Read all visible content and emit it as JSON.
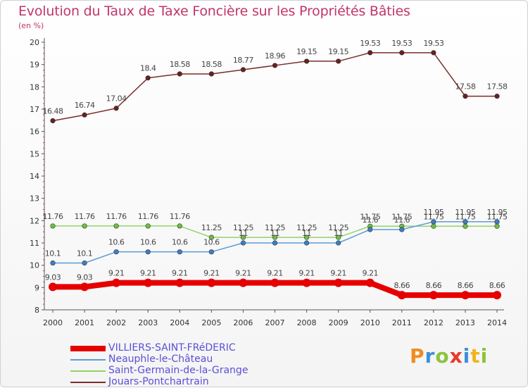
{
  "title": "Evolution du Taux de Taxe Foncière sur les Propriétés Bâties",
  "unit_label": "(en %)",
  "logo": {
    "text": "Proxiti",
    "letters": [
      {
        "ch": "P",
        "color": "#f08c1e"
      },
      {
        "ch": "r",
        "color": "#3d8fd8"
      },
      {
        "ch": "o",
        "color": "#8cc43c"
      },
      {
        "ch": "x",
        "color": "#e8392a"
      },
      {
        "ch": "i",
        "color": "#3d8fd8"
      },
      {
        "ch": "t",
        "color": "#f0b41e"
      },
      {
        "ch": "i",
        "color": "#8cc43c"
      }
    ]
  },
  "chart_data": {
    "type": "line",
    "title": "Evolution du Taux de Taxe Foncière sur les Propriétés Bâties",
    "ylabel": "(en %)",
    "xlabel": "",
    "ylim": [
      8,
      20
    ],
    "yticks": [
      8,
      9,
      10,
      11,
      12,
      13,
      14,
      15,
      16,
      17,
      18,
      19,
      20
    ],
    "x": [
      "2000",
      "2001",
      "2002",
      "2003",
      "2004",
      "2005",
      "2006",
      "2007",
      "2008",
      "2009",
      "2010",
      "2011",
      "2012",
      "2013",
      "2014"
    ],
    "grid": false,
    "legend_position": "bottom-left",
    "series": [
      {
        "name": "VILLIERS-SAINT-FRéDERIC",
        "color": "#e60000",
        "marker_color": "#e60000",
        "width": 8,
        "values": [
          9.03,
          9.03,
          9.21,
          9.21,
          9.21,
          9.21,
          9.21,
          9.21,
          9.21,
          9.21,
          9.21,
          8.66,
          8.66,
          8.66,
          8.66
        ],
        "labels": [
          "9.03",
          "9.03",
          "9.21",
          "9.21",
          "9.21",
          "9.21",
          "9.21",
          "9.21",
          "9.21",
          "9.21",
          "9.21",
          "8.66",
          "8.66",
          "8.66",
          "8.66"
        ]
      },
      {
        "name": "Neauphle-le-Château",
        "color": "#5b9bd5",
        "marker_color": "#3a7ec8",
        "width": 1.5,
        "values": [
          10.1,
          10.1,
          10.6,
          10.6,
          10.6,
          10.6,
          11,
          11,
          11,
          11,
          11.6,
          11.6,
          11.95,
          11.95,
          11.95
        ],
        "labels": [
          "10.1",
          "10.1",
          "10.6",
          "10.6",
          "10.6",
          "10.6",
          "11",
          "11",
          "11",
          "11",
          "11.6",
          "11.6",
          "11.95",
          "11.95",
          "11.95"
        ]
      },
      {
        "name": "Saint-Germain-de-la-Grange",
        "color": "#8fd46a",
        "marker_color": "#6cc040",
        "width": 1.5,
        "values": [
          11.76,
          11.76,
          11.76,
          11.76,
          11.76,
          11.25,
          11.25,
          11.25,
          11.25,
          11.25,
          11.75,
          11.75,
          11.75,
          11.75,
          11.75
        ],
        "labels": [
          "11.76",
          "11.76",
          "11.76",
          "11.76",
          "11.76",
          "11.25",
          "11.25",
          "11.25",
          "11.25",
          "11.25",
          "11.75",
          "11.75",
          "11.75",
          "11.75",
          "11.75"
        ]
      },
      {
        "name": "Jouars-Pontchartrain",
        "color": "#7a2c2c",
        "marker_color": "#6a2020",
        "width": 1.5,
        "values": [
          16.48,
          16.74,
          17.04,
          18.4,
          18.58,
          18.58,
          18.77,
          18.96,
          19.15,
          19.15,
          19.53,
          19.53,
          19.53,
          17.58,
          17.58
        ],
        "labels": [
          "16.48",
          "16.74",
          "17.04",
          "18.4",
          "18.58",
          "18.58",
          "18.77",
          "18.96",
          "19.15",
          "19.15",
          "19.53",
          "19.53",
          "19.53",
          "17.58",
          "17.58"
        ]
      }
    ]
  }
}
